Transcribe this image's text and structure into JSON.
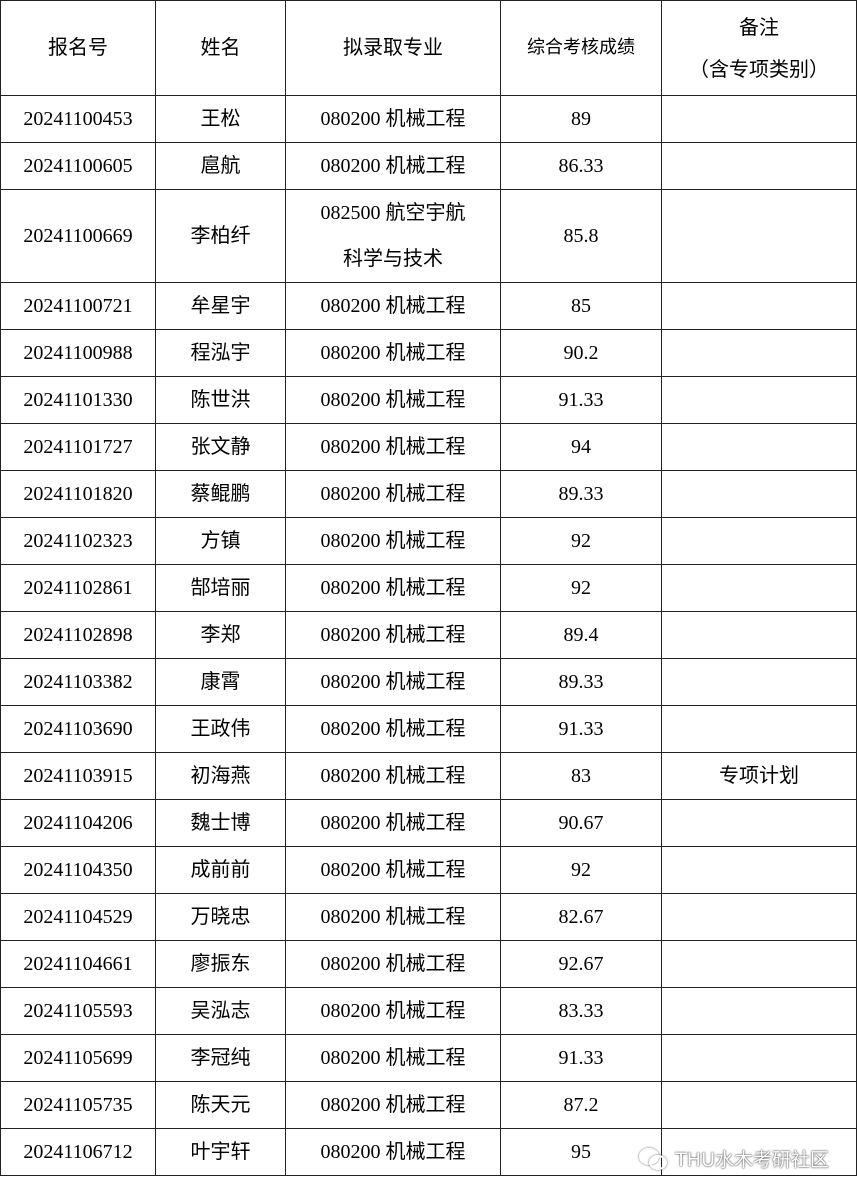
{
  "headers": {
    "id": "报名号",
    "name": "姓名",
    "major": "拟录取专业",
    "score": "综合考核成绩",
    "note_line1": "备注",
    "note_line2": "（含专项类别）"
  },
  "rows": [
    {
      "id": "20241100453",
      "name": "王松",
      "major": "080200 机械工程",
      "score": "89",
      "note": ""
    },
    {
      "id": "20241100605",
      "name": "扈航",
      "major": "080200 机械工程",
      "score": "86.33",
      "note": ""
    },
    {
      "id": "20241100669",
      "name": "李柏纤",
      "major": "082500 航空宇航科学与技术",
      "major_line1": "082500 航空宇航",
      "major_line2": "科学与技术",
      "score": "85.8",
      "note": ""
    },
    {
      "id": "20241100721",
      "name": "牟星宇",
      "major": "080200 机械工程",
      "score": "85",
      "note": ""
    },
    {
      "id": "20241100988",
      "name": "程泓宇",
      "major": "080200 机械工程",
      "score": "90.2",
      "note": ""
    },
    {
      "id": "20241101330",
      "name": "陈世洪",
      "major": "080200 机械工程",
      "score": "91.33",
      "note": ""
    },
    {
      "id": "20241101727",
      "name": "张文静",
      "major": "080200 机械工程",
      "score": "94",
      "note": ""
    },
    {
      "id": "20241101820",
      "name": "蔡鲲鹏",
      "major": "080200 机械工程",
      "score": "89.33",
      "note": ""
    },
    {
      "id": "20241102323",
      "name": "方镇",
      "major": "080200 机械工程",
      "score": "92",
      "note": ""
    },
    {
      "id": "20241102861",
      "name": "郜培丽",
      "major": "080200 机械工程",
      "score": "92",
      "note": ""
    },
    {
      "id": "20241102898",
      "name": "李郑",
      "major": "080200 机械工程",
      "score": "89.4",
      "note": ""
    },
    {
      "id": "20241103382",
      "name": "康霄",
      "major": "080200 机械工程",
      "score": "89.33",
      "note": ""
    },
    {
      "id": "20241103690",
      "name": "王政伟",
      "major": "080200 机械工程",
      "score": "91.33",
      "note": ""
    },
    {
      "id": "20241103915",
      "name": "初海燕",
      "major": "080200 机械工程",
      "score": "83",
      "note": "专项计划"
    },
    {
      "id": "20241104206",
      "name": "魏士博",
      "major": "080200 机械工程",
      "score": "90.67",
      "note": ""
    },
    {
      "id": "20241104350",
      "name": "成前前",
      "major": "080200 机械工程",
      "score": "92",
      "note": ""
    },
    {
      "id": "20241104529",
      "name": "万晓忠",
      "major": "080200 机械工程",
      "score": "82.67",
      "note": ""
    },
    {
      "id": "20241104661",
      "name": "廖振东",
      "major": "080200 机械工程",
      "score": "92.67",
      "note": ""
    },
    {
      "id": "20241105593",
      "name": "吴泓志",
      "major": "080200 机械工程",
      "score": "83.33",
      "note": ""
    },
    {
      "id": "20241105699",
      "name": "李冠纯",
      "major": "080200 机械工程",
      "score": "91.33",
      "note": ""
    },
    {
      "id": "20241105735",
      "name": "陈天元",
      "major": "080200 机械工程",
      "score": "87.2",
      "note": ""
    },
    {
      "id": "20241106712",
      "name": "叶宇轩",
      "major": "080200 机械工程",
      "score": "95",
      "note": ""
    }
  ],
  "watermark": {
    "text": "THU水木考研社区",
    "icon": "wechat-icon"
  }
}
